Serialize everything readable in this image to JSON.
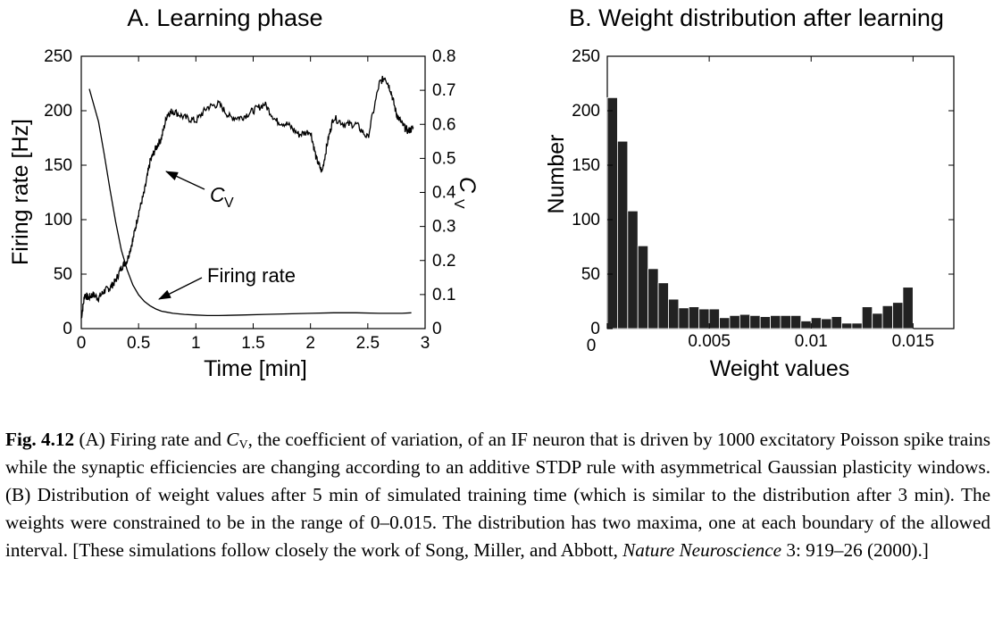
{
  "chart_data": [
    {
      "type": "line",
      "title": "A. Learning phase",
      "xlabel": "Time [min]",
      "ylabel_left": "Firing rate [Hz]",
      "ylabel_right": "C",
      "ylabel_right_sub": "V",
      "xlim": [
        0,
        3
      ],
      "ylim_left": [
        0,
        250
      ],
      "ylim_right": [
        0,
        0.8
      ],
      "x_ticks": [
        "0",
        "0.5",
        "1",
        "1.5",
        "2",
        "2.5",
        "3"
      ],
      "y_ticks_left": [
        "0",
        "50",
        "100",
        "150",
        "200",
        "250"
      ],
      "y_ticks_right": [
        "0",
        "0.1",
        "0.2",
        "0.3",
        "0.4",
        "0.5",
        "0.6",
        "0.7",
        "0.8"
      ],
      "grid": false,
      "annotations": [
        {
          "text": "C",
          "sub": "V",
          "points_to": [
            0.62,
            0.52
          ]
        },
        {
          "text": "Firing rate",
          "points_to": [
            0.68,
            0.08
          ]
        }
      ],
      "series": [
        {
          "name": "Firing rate",
          "axis": "left",
          "x": [
            0.07,
            0.15,
            0.2,
            0.25,
            0.3,
            0.35,
            0.4,
            0.45,
            0.5,
            0.55,
            0.6,
            0.65,
            0.7,
            0.75,
            0.8,
            0.9,
            1.0,
            1.1,
            1.2,
            1.4,
            1.6,
            1.8,
            2.0,
            2.2,
            2.4,
            2.6,
            2.8,
            2.88
          ],
          "y": [
            220,
            190,
            160,
            128,
            98,
            72,
            54,
            40,
            31,
            25,
            21,
            18,
            16,
            15,
            14,
            13,
            12.5,
            12,
            12,
            12.5,
            13,
            13.5,
            14,
            14.5,
            14.5,
            14,
            14,
            14.5
          ]
        },
        {
          "name": "C",
          "axis": "right",
          "x": [
            0.0,
            0.03,
            0.06,
            0.1,
            0.15,
            0.2,
            0.25,
            0.3,
            0.35,
            0.4,
            0.45,
            0.5,
            0.55,
            0.6,
            0.65,
            0.7,
            0.75,
            0.8,
            0.9,
            1.0,
            1.1,
            1.2,
            1.3,
            1.4,
            1.5,
            1.6,
            1.7,
            1.8,
            1.9,
            2.0,
            2.05,
            2.1,
            2.15,
            2.2,
            2.3,
            2.4,
            2.5,
            2.6,
            2.65,
            2.7,
            2.75,
            2.8,
            2.85,
            2.9
          ],
          "y": [
            0.03,
            0.1,
            0.09,
            0.1,
            0.09,
            0.11,
            0.12,
            0.14,
            0.18,
            0.2,
            0.26,
            0.34,
            0.4,
            0.49,
            0.53,
            0.56,
            0.63,
            0.64,
            0.62,
            0.61,
            0.65,
            0.66,
            0.62,
            0.62,
            0.64,
            0.66,
            0.61,
            0.6,
            0.57,
            0.58,
            0.5,
            0.46,
            0.55,
            0.62,
            0.6,
            0.6,
            0.56,
            0.72,
            0.74,
            0.7,
            0.63,
            0.6,
            0.58,
            0.59
          ]
        }
      ]
    },
    {
      "type": "bar",
      "title": "B. Weight distribution after learning",
      "xlabel": "Weight values",
      "ylabel": "Number",
      "xlim": [
        0,
        0.017
      ],
      "ylim": [
        0,
        250
      ],
      "x_ticks": [
        "0",
        "0.005",
        "0.01",
        "0.015"
      ],
      "y_ticks": [
        "0",
        "50",
        "100",
        "150",
        "200",
        "250"
      ],
      "bin_width": 0.0005,
      "bin_starts": [
        0,
        0.0005,
        0.001,
        0.0015,
        0.002,
        0.0025,
        0.003,
        0.0035,
        0.004,
        0.0045,
        0.005,
        0.0055,
        0.006,
        0.0065,
        0.007,
        0.0075,
        0.008,
        0.0085,
        0.009,
        0.0095,
        0.01,
        0.0105,
        0.011,
        0.0115,
        0.012,
        0.0125,
        0.013,
        0.0135,
        0.014,
        0.0145
      ],
      "values": [
        212,
        172,
        108,
        76,
        55,
        42,
        27,
        19,
        20,
        18,
        18,
        10,
        12,
        13,
        12,
        11,
        12,
        12,
        12,
        7,
        10,
        9,
        11,
        5,
        5,
        20,
        14,
        21,
        24,
        38
      ],
      "grid": false
    }
  ],
  "caption": {
    "label": "Fig. 4.12",
    "p1": " (A) Firing rate and ",
    "cv": "C",
    "cv_sub": "V",
    "p2": ", the coefficient of variation, of an IF neuron that is driven by 1000 excitatory Poisson spike trains while the synaptic efficiencies are changing according to an additive STDP rule with asymmetrical Gaussian plasticity windows. (B) Distribution of weight values after 5 min of simulated training time (which is similar to the distribution after 3 min). The weights were constrained to be in the range of 0–0.015. The distribution has two maxima, one at each boundary of the allowed interval. [These simulations follow closely the work of Song, Miller, and Abbott, ",
    "journal": "Nature Neuroscience",
    "p3": " 3: 919–26 (2000).]"
  }
}
